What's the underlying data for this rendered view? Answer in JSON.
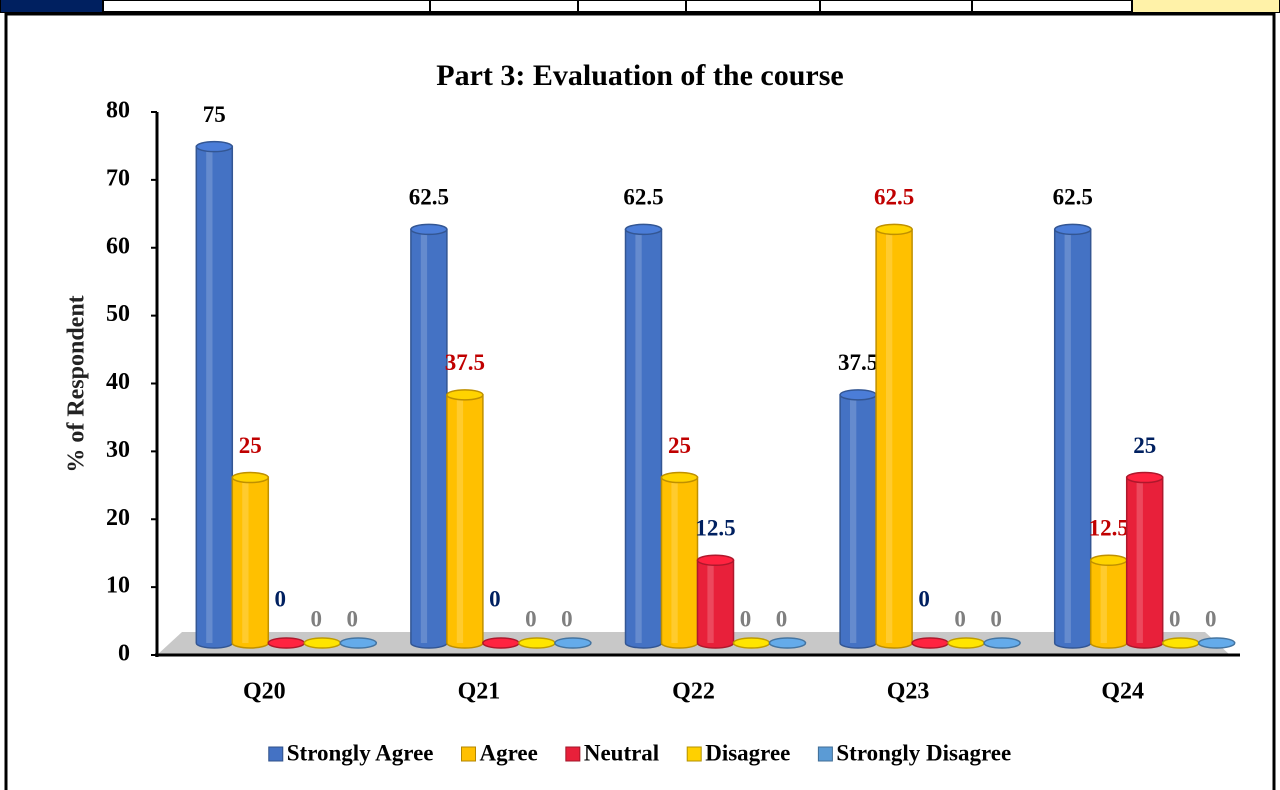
{
  "chart_data": {
    "type": "bar3d",
    "title": "Part 3: Evaluation of the course",
    "ylabel": "% of Respondent",
    "categories": [
      "Q20",
      "Q21",
      "Q22",
      "Q23",
      "Q24"
    ],
    "series": [
      {
        "name": "Strongly Agree",
        "color": "#4472c4",
        "label_color": "#000000",
        "values": [
          75,
          62.5,
          62.5,
          37.5,
          62.5
        ]
      },
      {
        "name": "Agree",
        "color": "#ffc000",
        "label_color": "#c00000",
        "values": [
          25,
          37.5,
          25,
          62.5,
          12.5
        ]
      },
      {
        "name": "Neutral",
        "color": "#e8203a",
        "label_color": "#002060",
        "values": [
          0,
          0,
          12.5,
          0,
          25
        ]
      },
      {
        "name": "Disagree",
        "color": "#ffd000",
        "label_color": "#7f7f7f",
        "values": [
          0,
          0,
          0,
          0,
          0
        ]
      },
      {
        "name": "Strongly Disagree",
        "color": "#5b9bd5",
        "label_color": "#7f7f7f",
        "values": [
          0,
          0,
          0,
          0,
          0
        ]
      }
    ],
    "ylim": [
      0,
      80
    ],
    "yticks": [
      0,
      10,
      20,
      30,
      40,
      50,
      60,
      70,
      80
    ],
    "legend": "bottom"
  }
}
